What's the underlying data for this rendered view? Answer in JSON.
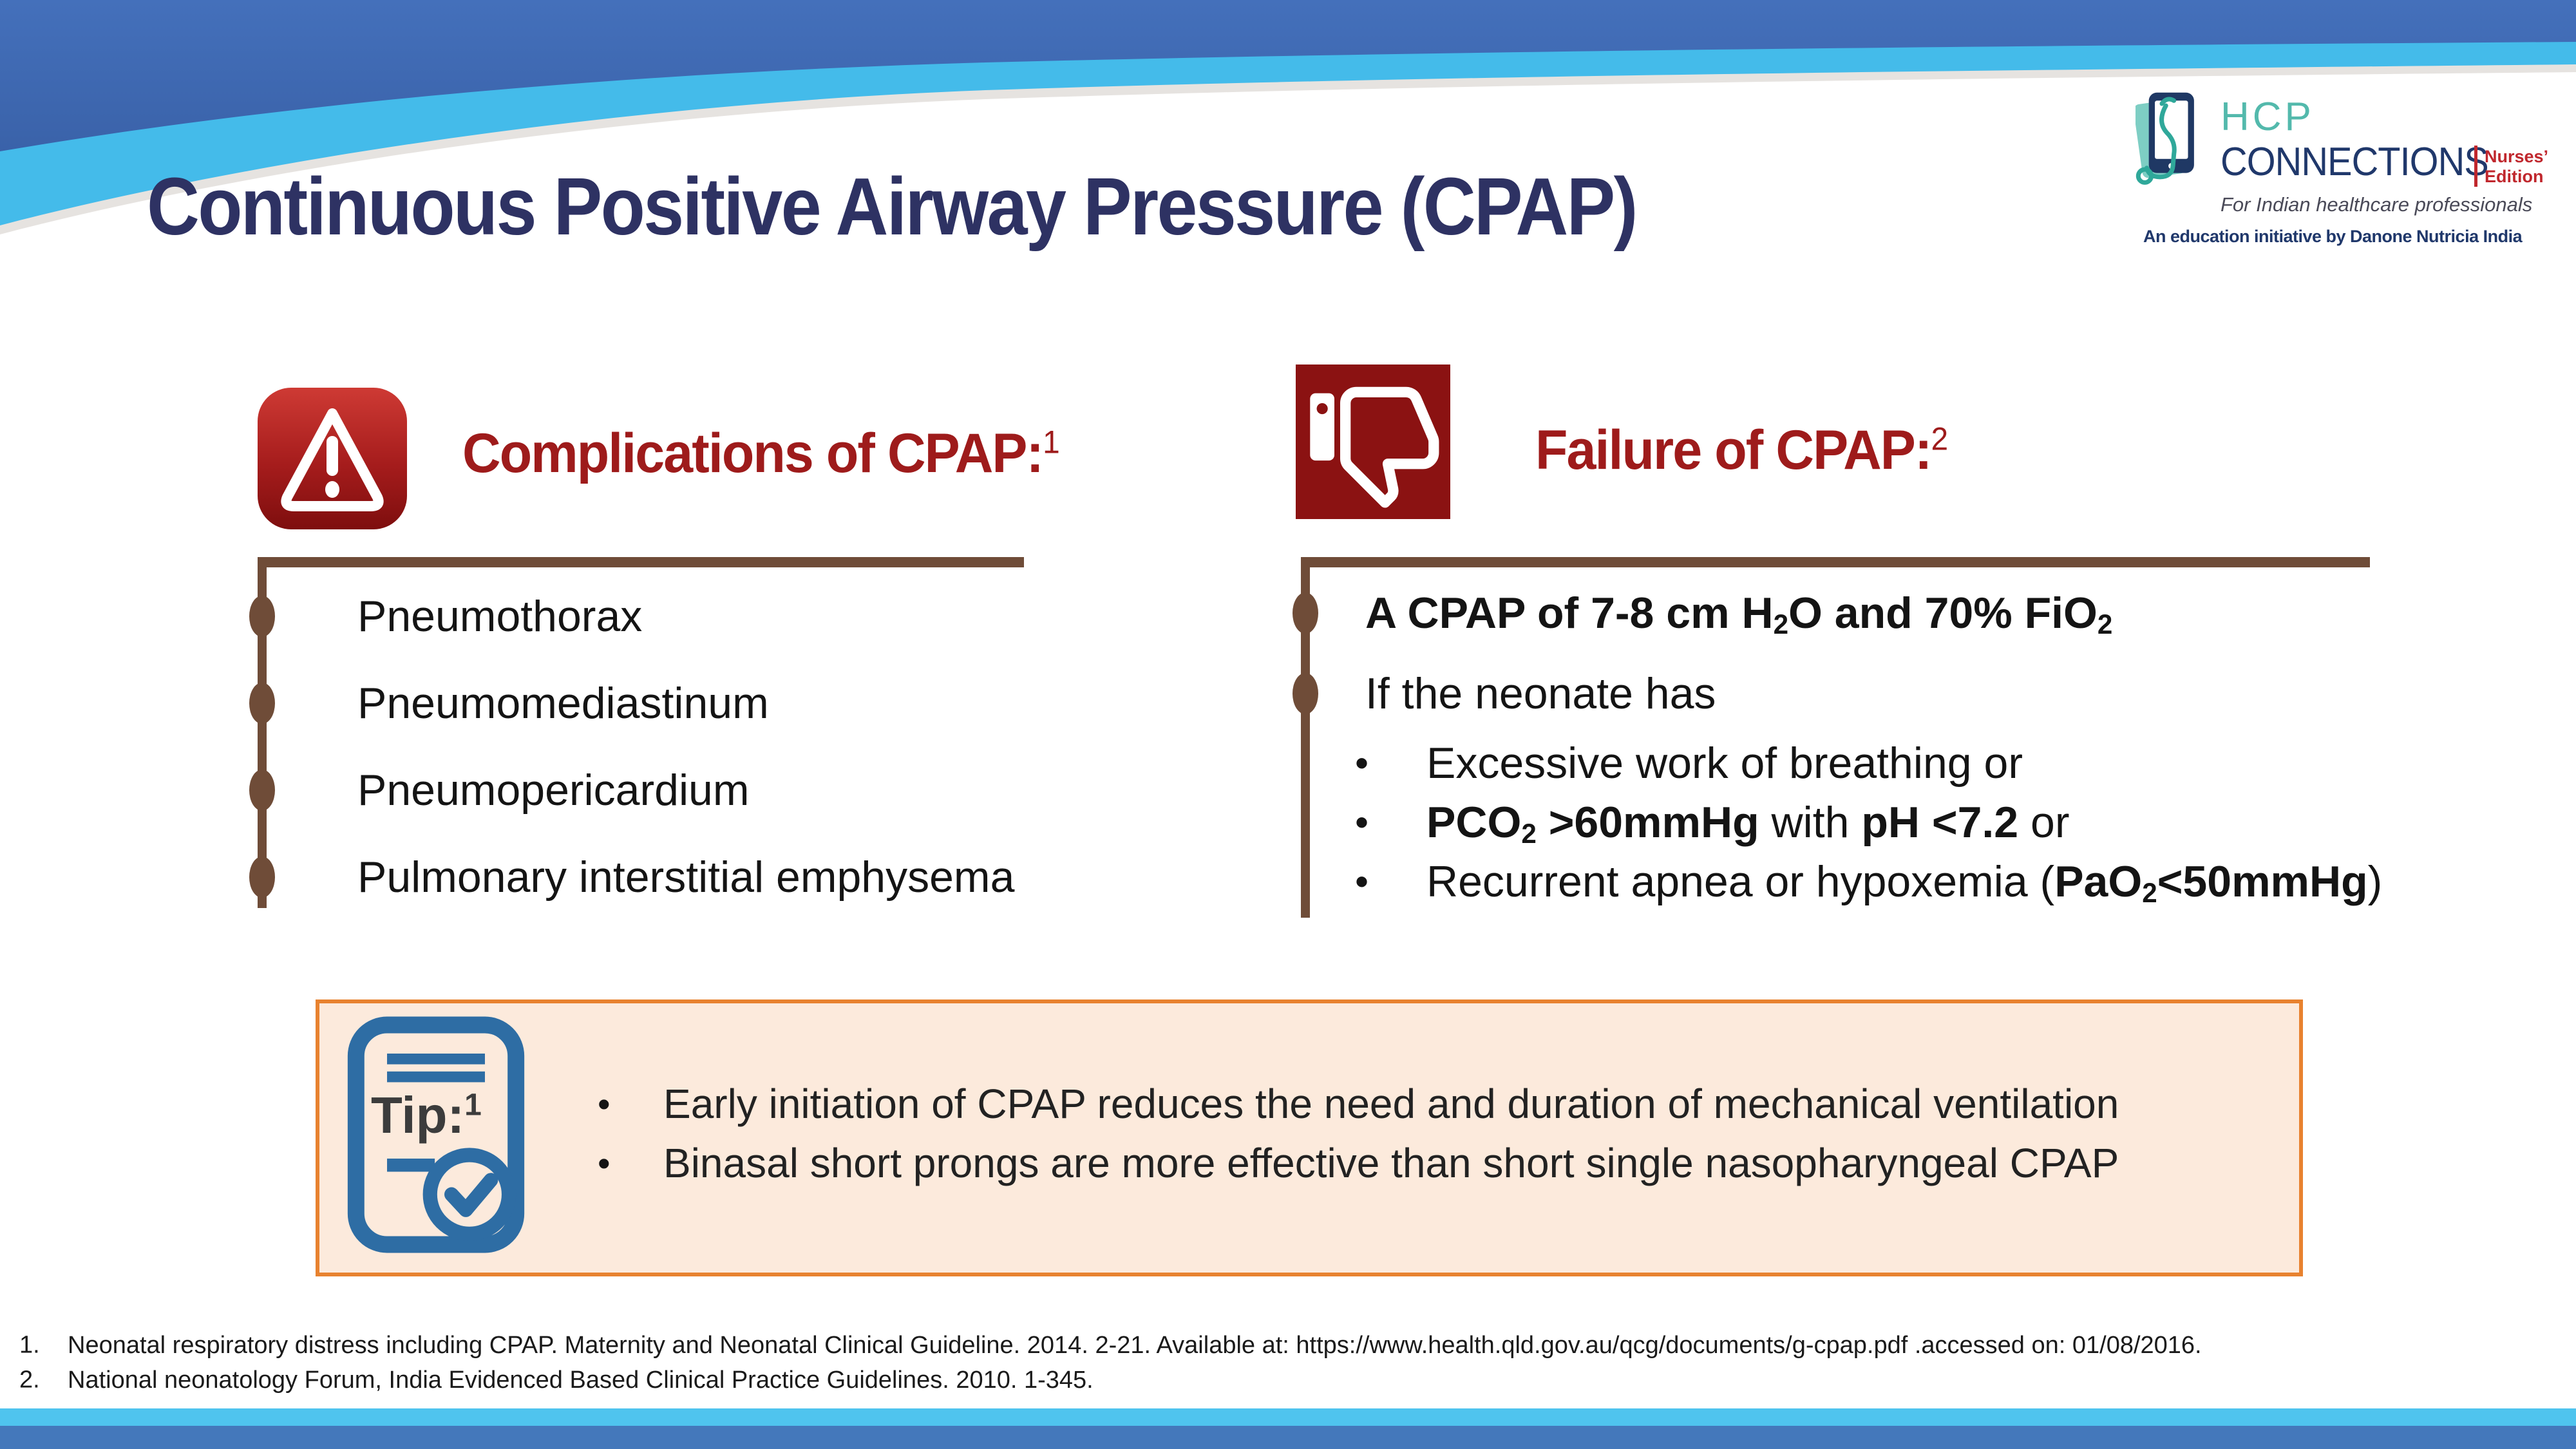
{
  "slide": {
    "title": "Continuous Positive Airway Pressure (CPAP)"
  },
  "logo": {
    "hcp": "HCP",
    "connections": "CONNECTIONS",
    "edition_line1": "Nurses’",
    "edition_line2": "Edition",
    "tagline": "For Indian healthcare professionals",
    "initiative": "An education initiative by Danone Nutricia India"
  },
  "complications": {
    "heading": "Complications of CPAP:",
    "heading_ref": "1",
    "items": [
      "Pneumothorax",
      "Pneumomediastinum",
      "Pneumopericardium",
      "Pulmonary interstitial emphysema"
    ]
  },
  "failure": {
    "heading": "Failure of CPAP:",
    "heading_ref": "2",
    "items": [
      {
        "segments": [
          {
            "t": "A CPAP of 7-8 cm H",
            "b": 1
          },
          {
            "t": "2",
            "b": 1,
            "sub": 1
          },
          {
            "t": "O and 70% FiO",
            "b": 1
          },
          {
            "t": "2",
            "b": 1,
            "sub": 1
          }
        ]
      },
      {
        "segments": [
          {
            "t": "If the neonate has"
          }
        ]
      }
    ],
    "subitems": [
      {
        "segments": [
          {
            "t": "Excessive work of breathing or"
          }
        ]
      },
      {
        "segments": [
          {
            "t": "PCO",
            "b": 1
          },
          {
            "t": "2",
            "b": 1,
            "sub": 1
          },
          {
            "t": " >60mmHg",
            "b": 1
          },
          {
            "t": " with "
          },
          {
            "t": "pH <7.2",
            "b": 1
          },
          {
            "t": " or"
          }
        ]
      },
      {
        "segments": [
          {
            "t": "Recurrent apnea or hypoxemia ("
          },
          {
            "t": "PaO",
            "b": 1
          },
          {
            "t": "2",
            "b": 1,
            "sub": 1
          },
          {
            "t": "<50mmHg",
            "b": 1
          },
          {
            "t": ")"
          }
        ]
      }
    ]
  },
  "tip": {
    "label": "Tip:",
    "label_ref": "1",
    "items": [
      "Early initiation of CPAP reduces the need and duration of mechanical ventilation",
      "Binasal short prongs are more effective than short single nasopharyngeal CPAP"
    ]
  },
  "references": [
    {
      "num": "1.",
      "text": "Neonatal respiratory distress including CPAP. Maternity and Neonatal Clinical Guideline. 2014. 2-21.  Available at: https://www.health.qld.gov.au/qcg/documents/g-cpap.pdf .accessed on: 01/08/2016."
    },
    {
      "num": "2.",
      "text": "National neonatology Forum, India Evidenced Based Clinical Practice Guidelines. 2010. 1-345."
    }
  ],
  "icons": {
    "warning_icon": "alert-triangle-red-badge",
    "thumbs_down_icon": "thumb-down-white-on-red",
    "tip_icon": "clipboard-with-check",
    "logo_icon": "tablet-with-stethoscope",
    "list_bullet": "brown-oval"
  },
  "colors": {
    "title_navy": "#2E3263",
    "heading_red": "#9E1B1B",
    "line_brown": "#6F4C38",
    "tip_border_orange": "#E8822F",
    "tip_bg_peach": "#FCEADC",
    "tip_blue": "#2E6DA4",
    "banner_dark_blue": "#3D68B2",
    "banner_light_blue": "#44BBEA",
    "footer_light_blue": "#4FC4EE",
    "footer_dark_blue": "#4478BB",
    "logo_teal": "#53B9AC",
    "logo_navy": "#20386B",
    "logo_red": "#C0272D",
    "icon_red_bg": "#8B1212"
  }
}
